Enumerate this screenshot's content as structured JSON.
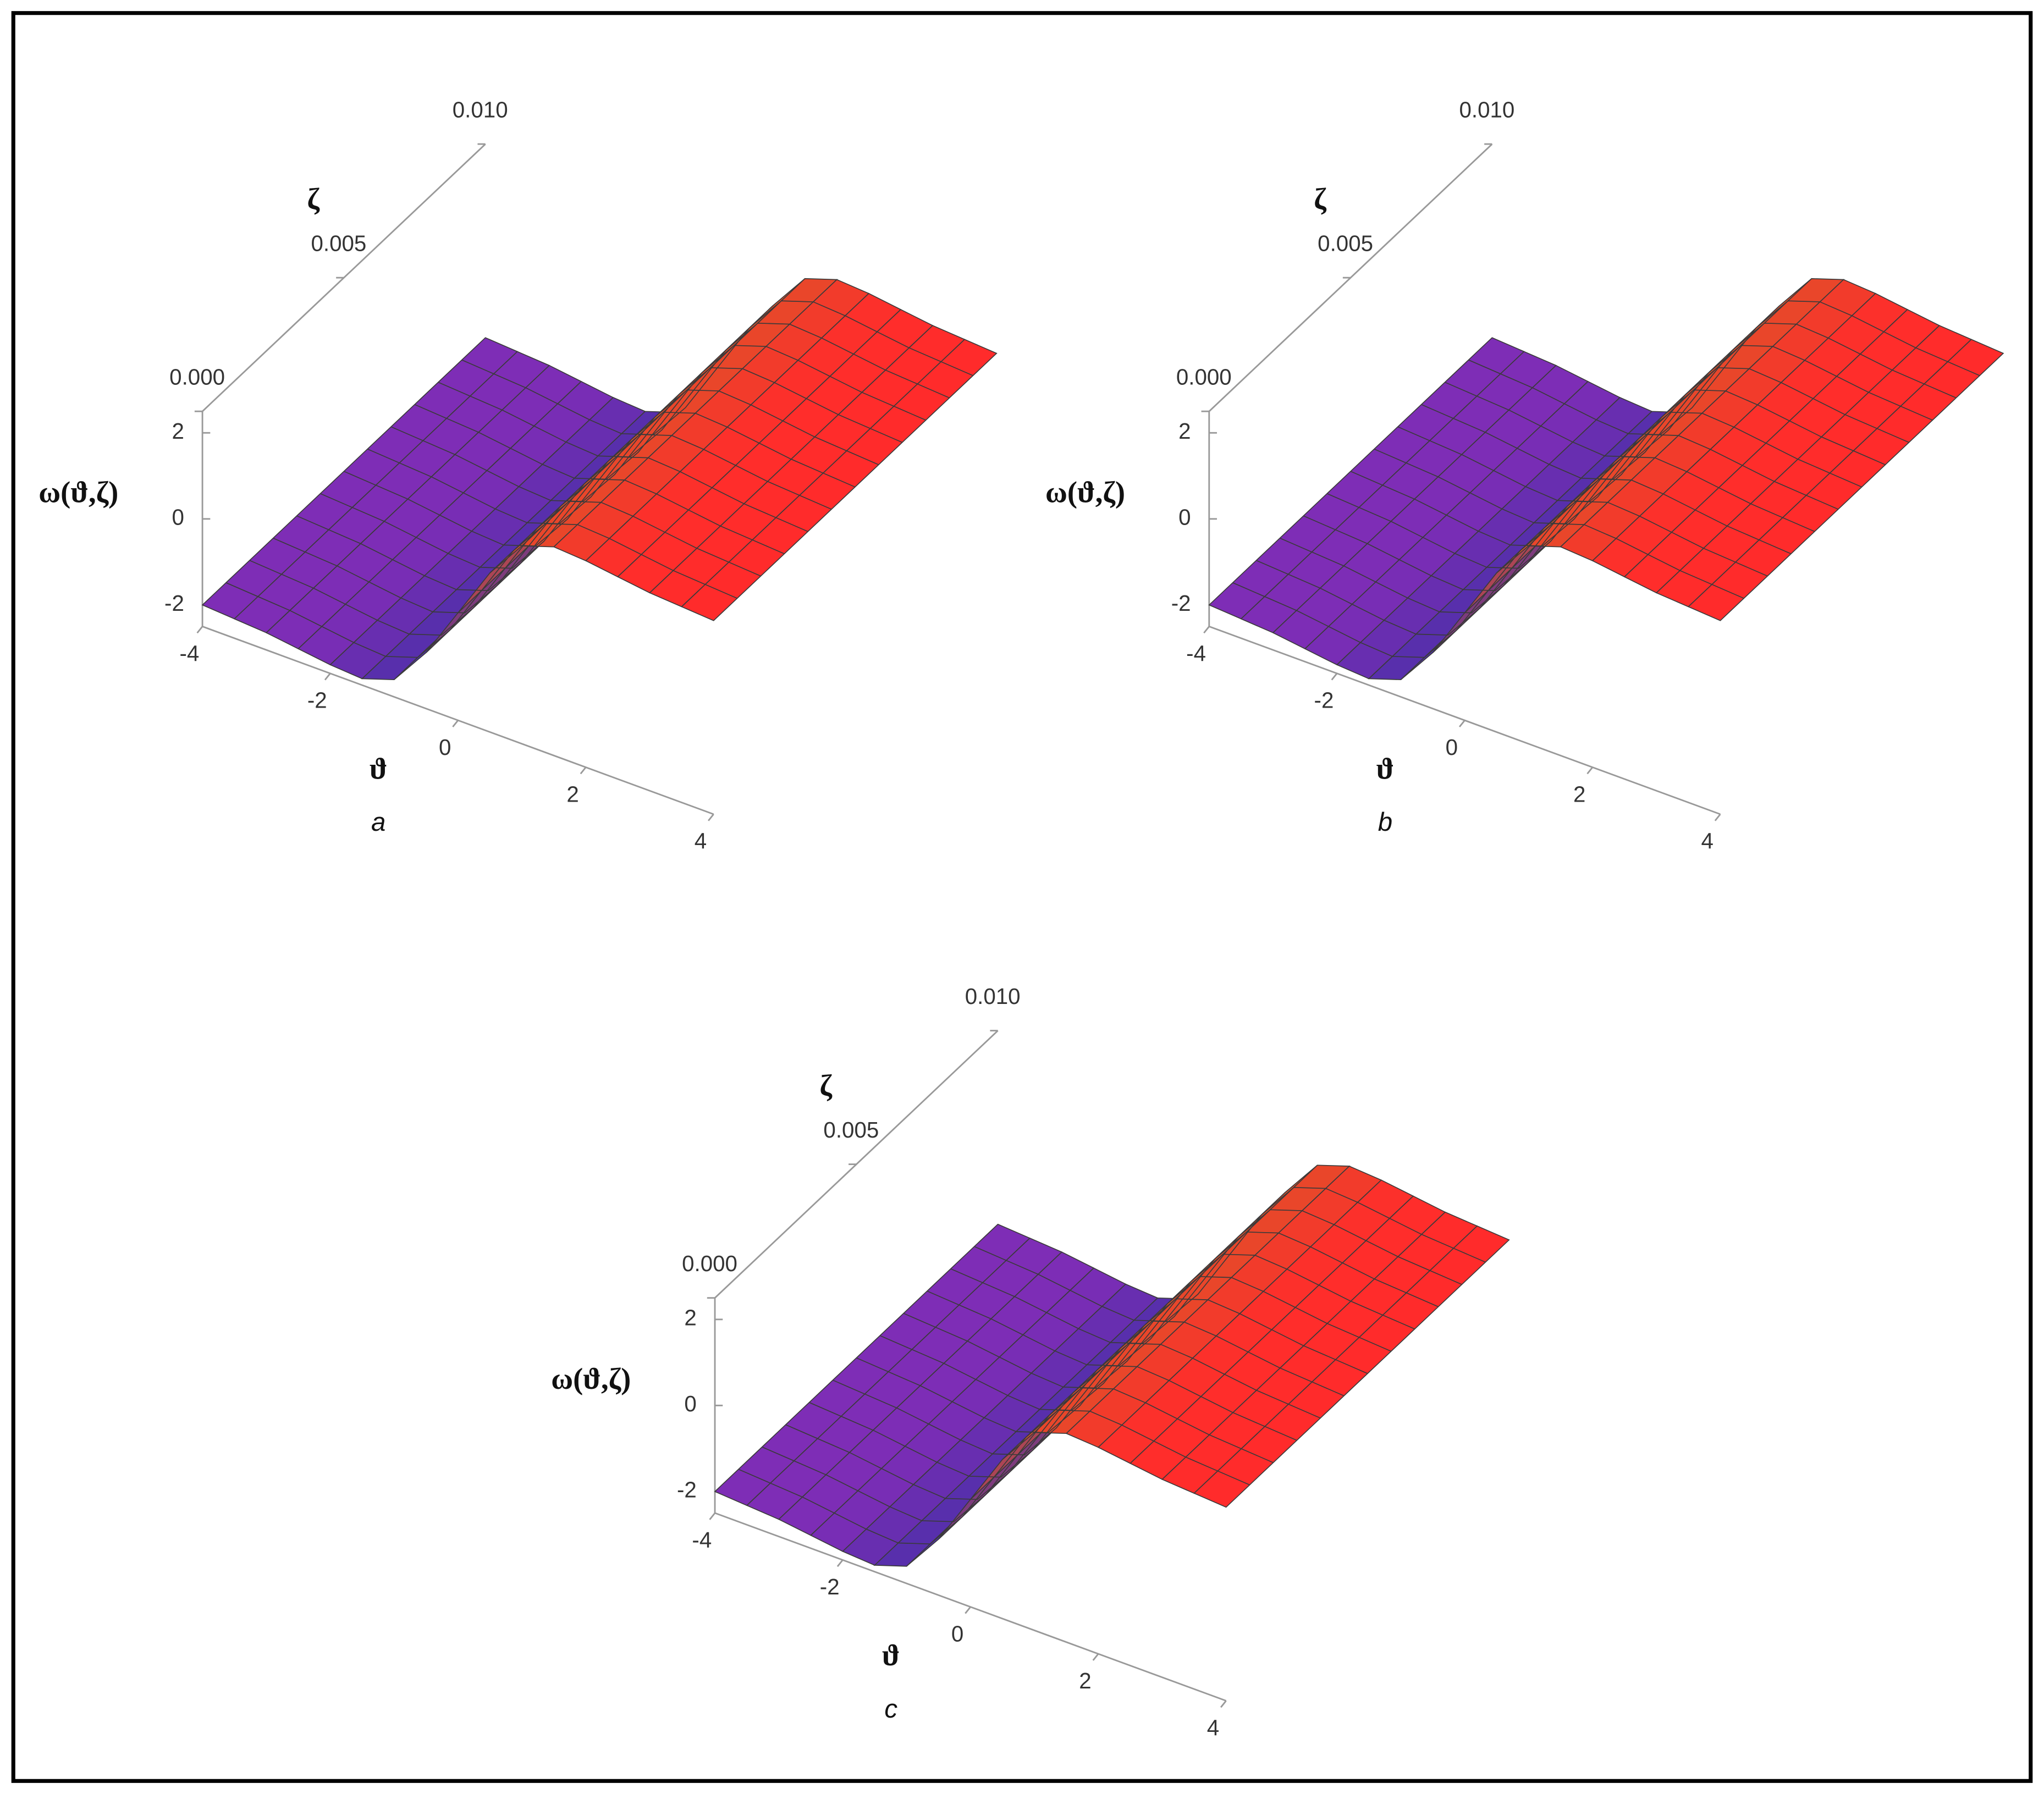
{
  "chart_data": [
    {
      "type": "surface",
      "caption": "a",
      "xlabel": "ϑ",
      "ylabel": "ζ",
      "zlabel": "ω(ϑ,ζ)",
      "x": [
        -4,
        -3.5,
        -3,
        -2.5,
        -2,
        -1.5,
        -1,
        -0.5,
        0,
        0.5,
        1,
        1.5,
        2,
        2.5,
        3,
        3.5,
        4
      ],
      "values": [
        -2.0,
        -2.05,
        -2.1,
        -2.2,
        -2.3,
        -2.35,
        -2.1,
        -1.2,
        0,
        1.2,
        2.1,
        2.35,
        2.3,
        2.2,
        2.1,
        2.05,
        2.0
      ],
      "xlim": [
        -4,
        4
      ],
      "xticks": [
        -4,
        -2,
        0,
        2,
        4
      ],
      "ylim": [
        0,
        0.01
      ],
      "yticks": [
        {
          "value": 0,
          "label": "0.000"
        },
        {
          "value": 0.005,
          "label": "0.005"
        },
        {
          "value": 0.01,
          "label": "0.010"
        }
      ],
      "zlim": [
        -2.5,
        2.5
      ],
      "zticks": [
        -2,
        0,
        2
      ],
      "colormap": [
        "#7e2db6",
        "#7d2db6",
        "#4a30a8",
        "#e0502a",
        "#ff2d2b",
        "#ff2b2b"
      ],
      "mesh": true
    },
    {
      "type": "surface",
      "caption": "b",
      "xlabel": "ϑ",
      "ylabel": "ζ",
      "zlabel": "ω(ϑ,ζ)",
      "x": [
        -4,
        -3.5,
        -3,
        -2.5,
        -2,
        -1.5,
        -1,
        -0.5,
        0,
        0.5,
        1,
        1.5,
        2,
        2.5,
        3,
        3.5,
        4
      ],
      "values": [
        -2.0,
        -2.05,
        -2.1,
        -2.2,
        -2.3,
        -2.35,
        -2.1,
        -1.2,
        0,
        1.2,
        2.1,
        2.35,
        2.3,
        2.2,
        2.1,
        2.05,
        2.0
      ],
      "xlim": [
        -4,
        4
      ],
      "xticks": [
        -4,
        -2,
        0,
        2,
        4
      ],
      "ylim": [
        0,
        0.01
      ],
      "yticks": [
        {
          "value": 0,
          "label": "0.000"
        },
        {
          "value": 0.005,
          "label": "0.005"
        },
        {
          "value": 0.01,
          "label": "0.010"
        }
      ],
      "zlim": [
        -2.5,
        2.5
      ],
      "zticks": [
        -2,
        0,
        2
      ],
      "colormap": [
        "#7e2db6",
        "#7d2db6",
        "#4a30a8",
        "#e0502a",
        "#ff2d2b",
        "#ff2b2b"
      ],
      "mesh": true
    },
    {
      "type": "surface",
      "caption": "c",
      "xlabel": "ϑ",
      "ylabel": "ζ",
      "zlabel": "ω(ϑ,ζ)",
      "x": [
        -4,
        -3.5,
        -3,
        -2.5,
        -2,
        -1.5,
        -1,
        -0.5,
        0,
        0.5,
        1,
        1.5,
        2,
        2.5,
        3,
        3.5,
        4
      ],
      "values": [
        -2.0,
        -2.05,
        -2.1,
        -2.2,
        -2.3,
        -2.35,
        -2.1,
        -1.2,
        0,
        1.2,
        2.1,
        2.35,
        2.3,
        2.2,
        2.1,
        2.05,
        2.0
      ],
      "xlim": [
        -4,
        4
      ],
      "xticks": [
        -4,
        -2,
        0,
        2,
        4
      ],
      "ylim": [
        0,
        0.01
      ],
      "yticks": [
        {
          "value": 0,
          "label": "0.000"
        },
        {
          "value": 0.005,
          "label": "0.005"
        },
        {
          "value": 0.01,
          "label": "0.010"
        }
      ],
      "zlim": [
        -2.5,
        2.5
      ],
      "zticks": [
        -2,
        0,
        2
      ],
      "colormap": [
        "#7e2db6",
        "#7d2db6",
        "#4a30a8",
        "#e0502a",
        "#ff2d2b",
        "#ff2b2b"
      ],
      "mesh": true
    }
  ]
}
